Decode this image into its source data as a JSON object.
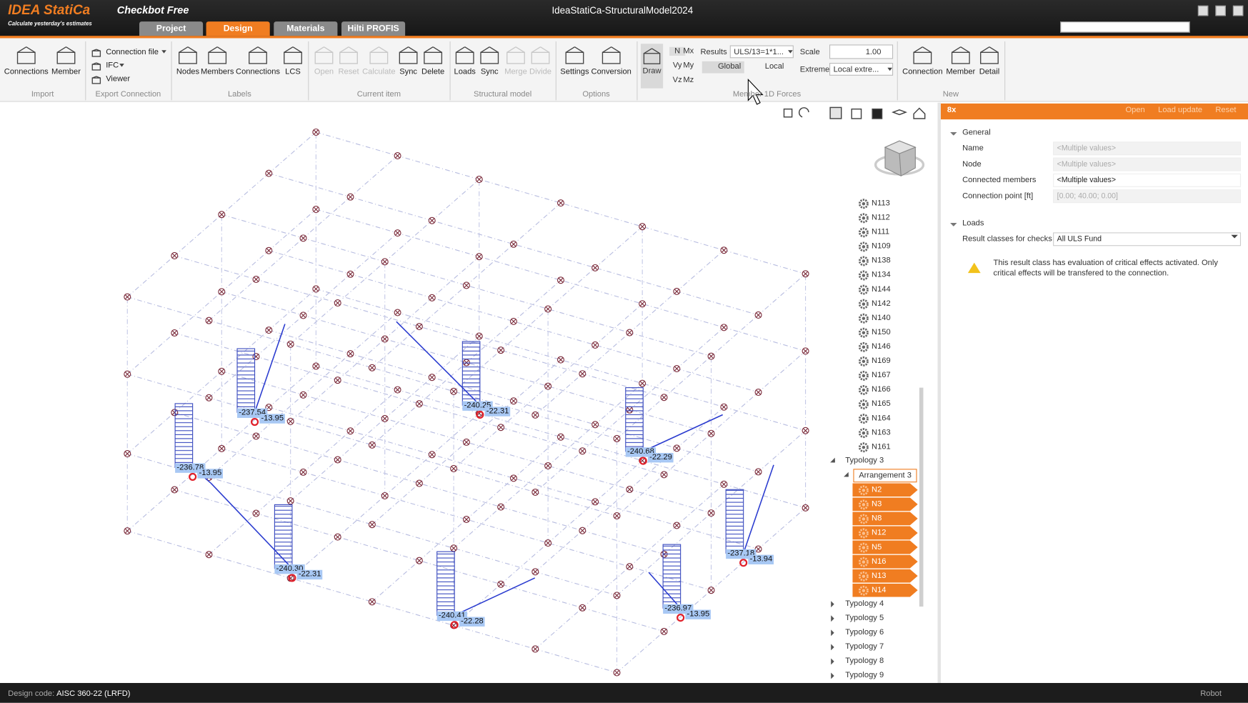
{
  "title_bar": {
    "logo": "IDEA StatiCa",
    "tagline": "Calculate yesterday's estimates",
    "product": "Checkbot Free",
    "window_title": "IdeaStatiCa-StructuralModel2024"
  },
  "tabs": [
    "Project",
    "Design",
    "Materials",
    "Hilti PROFIS"
  ],
  "ribbon": {
    "groups": [
      {
        "label": "Import",
        "buttons": [
          "Connections",
          "Member"
        ]
      },
      {
        "label": "Export Connection",
        "buttons": [
          "Connection file",
          "IFC",
          "Viewer"
        ]
      },
      {
        "label": "Labels",
        "buttons": [
          "Nodes",
          "Members",
          "Connections",
          "LCS"
        ]
      },
      {
        "label": "Current item",
        "buttons": [
          "Open",
          "Reset",
          "Calculate",
          "Sync",
          "Delete"
        ]
      },
      {
        "label": "Structural model",
        "buttons": [
          "Loads",
          "Sync",
          "Merge",
          "Divide"
        ]
      },
      {
        "label": "Options",
        "buttons": [
          "Settings",
          "Conversion"
        ]
      },
      {
        "label": "Member 1D Forces",
        "buttons": []
      },
      {
        "label": "New",
        "buttons": [
          "Connection",
          "Member",
          "Detail"
        ]
      }
    ],
    "forces": {
      "draw": "Draw",
      "components": [
        "N",
        "Mx",
        "Vy",
        "My",
        "Vz",
        "Mz"
      ],
      "results_label": "Results",
      "results_value": "ULS/13=1*1...",
      "systems": [
        "Global",
        "Local"
      ],
      "scale_label": "Scale",
      "scale_value": "1.00",
      "extreme_label": "Extreme",
      "extreme_value": "Local extre..."
    }
  },
  "model": {
    "force_labels": [
      [
        "-237.54",
        "-13.95"
      ],
      [
        "-236.78",
        "-13.95"
      ],
      [
        "-240.30",
        "-22.31"
      ],
      [
        "-240.25",
        "-22.31"
      ],
      [
        "-240.41",
        "-22.28"
      ],
      [
        "-240.68",
        "-22.29"
      ],
      [
        "-236.97",
        "-13.95"
      ],
      [
        "-237.18",
        "-13.94"
      ]
    ]
  },
  "tree": {
    "nodes": [
      "N113",
      "N112",
      "N111",
      "N109",
      "N138",
      "N134",
      "N144",
      "N142",
      "N140",
      "N150",
      "N146",
      "N169",
      "N167",
      "N166",
      "N165",
      "N164",
      "N163",
      "N161"
    ],
    "typology": "Typology 3",
    "arrangement": "Arrangement 3",
    "selected": [
      "N2",
      "N3",
      "N8",
      "N12",
      "N5",
      "N16",
      "N13",
      "N14"
    ],
    "collapsed": [
      "Typology 4",
      "Typology 5",
      "Typology 6",
      "Typology 7",
      "Typology 8",
      "Typology 9"
    ]
  },
  "properties": {
    "header": "8x",
    "actions": [
      "Open",
      "Load update",
      "Reset"
    ],
    "sections": [
      {
        "title": "General",
        "rows": [
          [
            "Name",
            "<Multiple values>"
          ],
          [
            "Node",
            "<Multiple values>"
          ],
          [
            "Connected members",
            "<Multiple values>"
          ],
          [
            "Connection point [ft]",
            "[0.00; 40.00; 0.00]"
          ]
        ]
      },
      {
        "title": "Loads",
        "rows": [
          [
            "Result classes for checks",
            "All ULS Fund"
          ]
        ]
      }
    ],
    "warning": "This result class has evaluation of critical effects activated. Only critical effects will be transfered to the connection."
  },
  "status_bar": {
    "label": "Design code:",
    "value": "AISC 360-22 (LRFD)",
    "right": "Robot"
  }
}
